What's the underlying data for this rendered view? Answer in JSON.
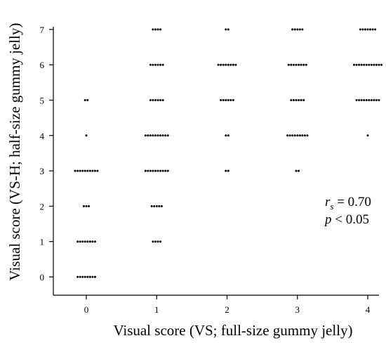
{
  "chart_data": {
    "type": "scatter",
    "subtype": "dot-plot",
    "xlabel": "Visual score (VS; full-size gummy jelly)",
    "ylabel": "Visual score (VS-H; half-size gummy jelly)",
    "x_ticks": [
      0,
      1,
      2,
      3,
      4
    ],
    "y_ticks": [
      0,
      1,
      2,
      3,
      4,
      5,
      6,
      7
    ],
    "xlim": [
      -0.4,
      4.1
    ],
    "ylim": [
      -0.5,
      7.1
    ],
    "grid": false,
    "points": [
      {
        "x": 0,
        "y": 0,
        "count": 8
      },
      {
        "x": 0,
        "y": 1,
        "count": 8
      },
      {
        "x": 0,
        "y": 2,
        "count": 3
      },
      {
        "x": 0,
        "y": 3,
        "count": 10
      },
      {
        "x": 0,
        "y": 4,
        "count": 1
      },
      {
        "x": 0,
        "y": 5,
        "count": 2
      },
      {
        "x": 1,
        "y": 1,
        "count": 4
      },
      {
        "x": 1,
        "y": 2,
        "count": 5
      },
      {
        "x": 1,
        "y": 3,
        "count": 10
      },
      {
        "x": 1,
        "y": 4,
        "count": 10
      },
      {
        "x": 1,
        "y": 5,
        "count": 6
      },
      {
        "x": 1,
        "y": 6,
        "count": 6
      },
      {
        "x": 1,
        "y": 7,
        "count": 4
      },
      {
        "x": 2,
        "y": 3,
        "count": 2
      },
      {
        "x": 2,
        "y": 4,
        "count": 2
      },
      {
        "x": 2,
        "y": 5,
        "count": 6
      },
      {
        "x": 2,
        "y": 6,
        "count": 8
      },
      {
        "x": 2,
        "y": 7,
        "count": 2
      },
      {
        "x": 3,
        "y": 3,
        "count": 2
      },
      {
        "x": 3,
        "y": 4,
        "count": 9
      },
      {
        "x": 3,
        "y": 5,
        "count": 6
      },
      {
        "x": 3,
        "y": 6,
        "count": 8
      },
      {
        "x": 3,
        "y": 7,
        "count": 5
      },
      {
        "x": 4,
        "y": 4,
        "count": 1
      },
      {
        "x": 4,
        "y": 5,
        "count": 10
      },
      {
        "x": 4,
        "y": 6,
        "count": 12
      },
      {
        "x": 4,
        "y": 7,
        "count": 7
      }
    ],
    "annotations": {
      "r_label": "r",
      "r_subscript": "s",
      "r_value": " = 0.70",
      "p_label": "p",
      "p_value": " < 0.05"
    }
  }
}
